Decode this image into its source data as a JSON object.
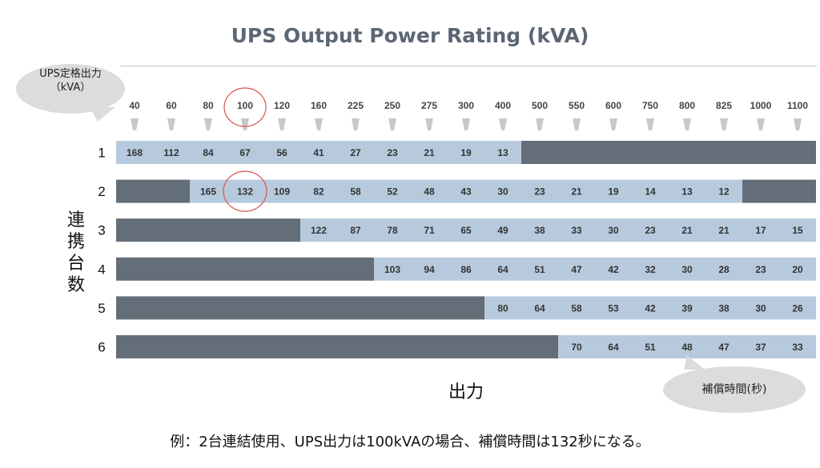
{
  "chart_data": {
    "type": "table",
    "title": "UPS Output Power Rating (kVA)",
    "column_header_label": "UPS定格出力\n（kVA）",
    "row_axis_label": "連携台数",
    "col_axis_label": "出力",
    "cell_label": "補償時間(秒)",
    "columns": [
      "40",
      "60",
      "80",
      "100",
      "120",
      "160",
      "225",
      "250",
      "275",
      "300",
      "400",
      "500",
      "550",
      "600",
      "750",
      "800",
      "825",
      "1000",
      "1100"
    ],
    "rows": [
      {
        "label": "1",
        "values": [
          168,
          112,
          84,
          67,
          56,
          41,
          27,
          23,
          21,
          19,
          13,
          null,
          null,
          null,
          null,
          null,
          null,
          null,
          null
        ]
      },
      {
        "label": "2",
        "values": [
          null,
          null,
          165,
          132,
          109,
          82,
          58,
          52,
          48,
          43,
          30,
          23,
          21,
          19,
          14,
          13,
          12,
          null,
          null
        ]
      },
      {
        "label": "3",
        "values": [
          null,
          null,
          null,
          null,
          null,
          122,
          87,
          78,
          71,
          65,
          49,
          38,
          33,
          30,
          23,
          21,
          21,
          17,
          15
        ]
      },
      {
        "label": "4",
        "values": [
          null,
          null,
          null,
          null,
          null,
          null,
          null,
          103,
          94,
          86,
          64,
          51,
          47,
          42,
          32,
          30,
          28,
          23,
          20
        ]
      },
      {
        "label": "5",
        "values": [
          null,
          null,
          null,
          null,
          null,
          null,
          null,
          null,
          null,
          null,
          80,
          64,
          58,
          53,
          42,
          39,
          38,
          30,
          26
        ]
      },
      {
        "label": "6",
        "values": [
          null,
          null,
          null,
          null,
          null,
          null,
          null,
          null,
          null,
          null,
          null,
          null,
          70,
          64,
          51,
          48,
          47,
          37,
          33
        ]
      }
    ],
    "highlight": {
      "column": "100",
      "row": "2",
      "value": 132
    },
    "colors": {
      "available": "#b7cadd",
      "unavailable": "#646e78",
      "title": "#5c6674",
      "highlight": "#d9534f",
      "arrow": "#c6c9cc"
    }
  },
  "footnote": "例：2台連結使用、UPS出力は100kVAの場合、補償時間は132秒になる。"
}
